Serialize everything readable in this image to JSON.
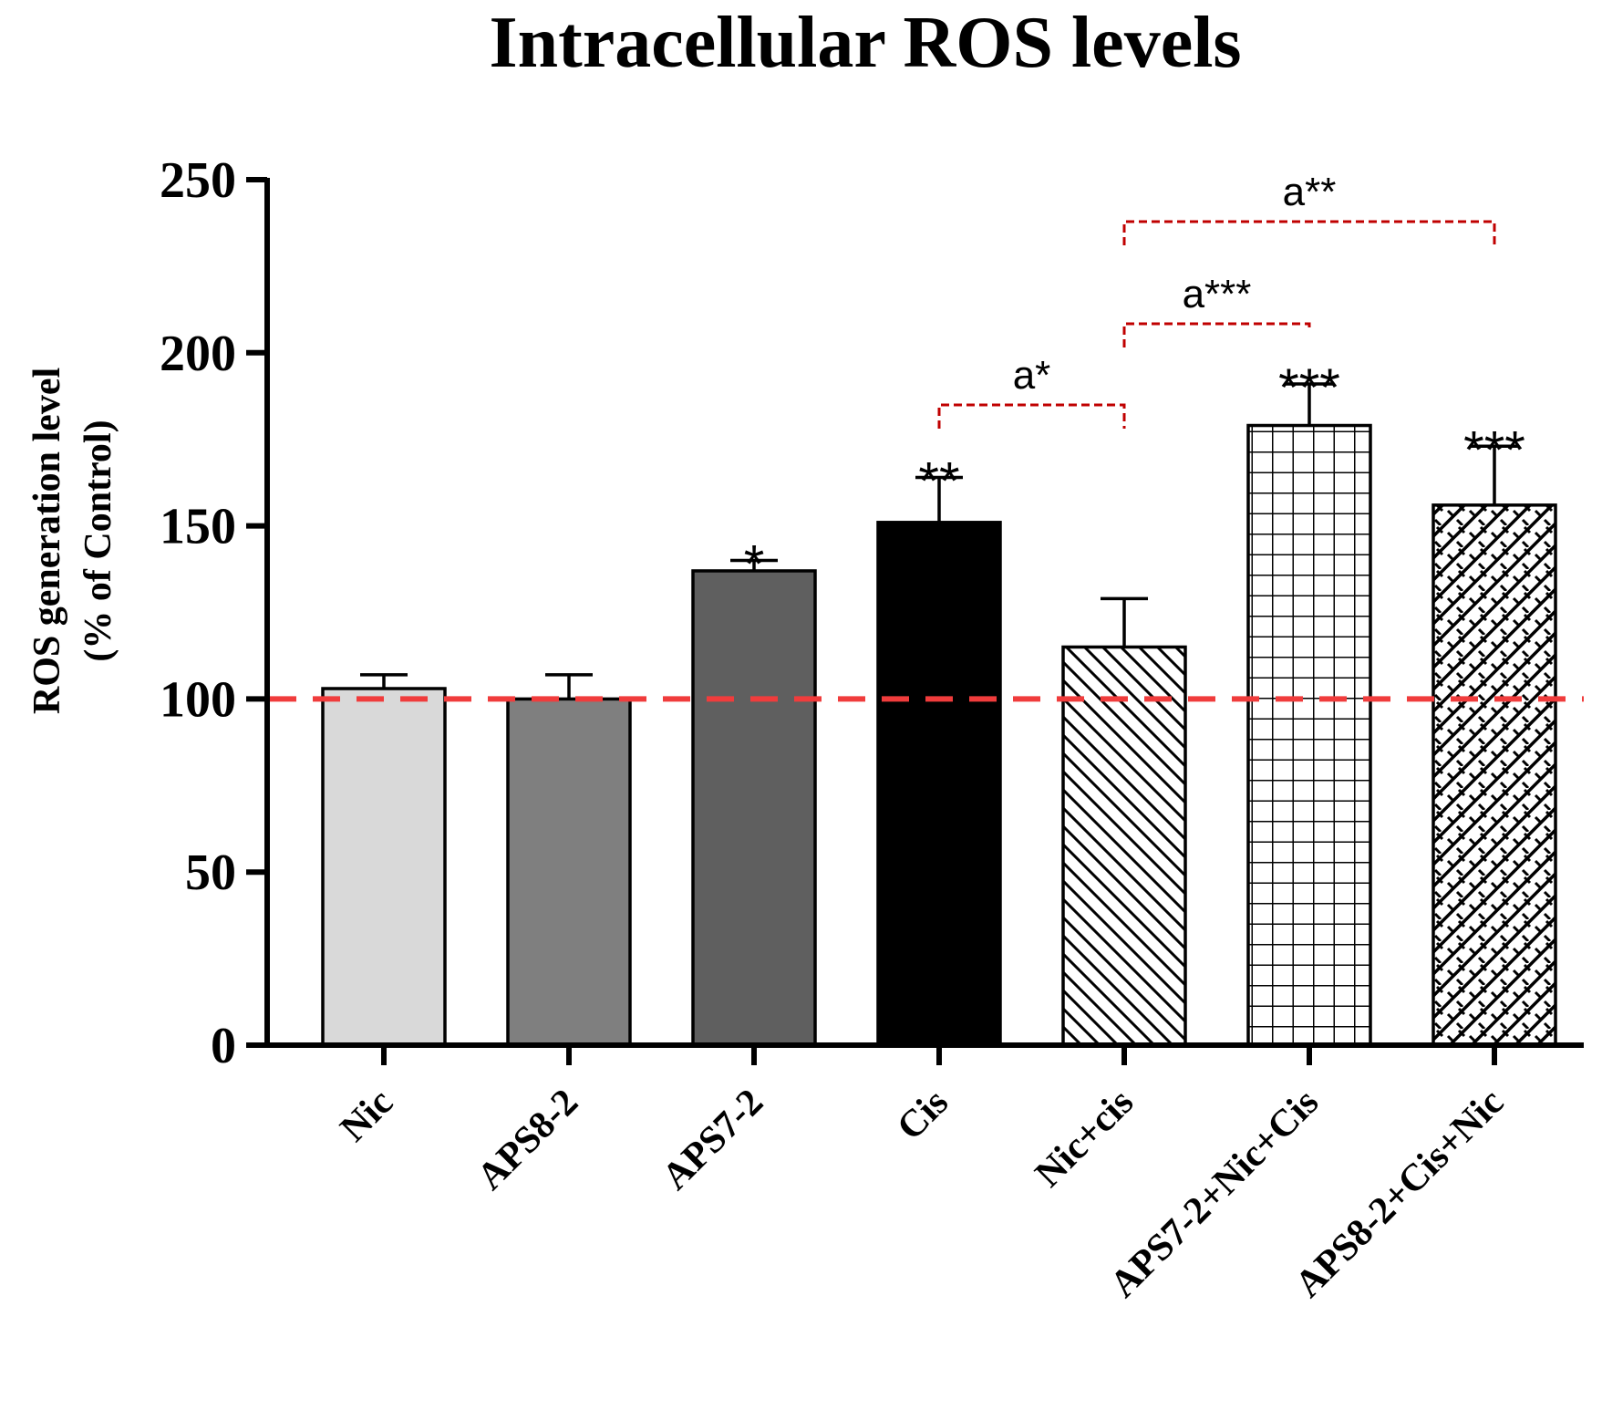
{
  "chart_data": {
    "type": "bar",
    "title": "Intracellular ROS levels",
    "ylabel_line1": "ROS generation level",
    "ylabel_line2": "(% of Control)",
    "xlabel": "",
    "ylim": [
      0,
      250
    ],
    "yticks": [
      "0",
      "50",
      "100",
      "150",
      "200",
      "250"
    ],
    "ytick_values": [
      0,
      50,
      100,
      150,
      200,
      250
    ],
    "categories": [
      "Nic",
      "APS8-2",
      "APS7-2",
      "Cis",
      "Nic+cis",
      "APS7-2+Nic+Cis",
      "APS8-2+Cis+Nic"
    ],
    "values": [
      103,
      100,
      137,
      151,
      115,
      179,
      156
    ],
    "errors": [
      4,
      7,
      3,
      13,
      14,
      12,
      17
    ],
    "significance": [
      "",
      "",
      "*",
      "**",
      "",
      "***",
      "***"
    ],
    "fills": [
      "#d9d9d9",
      "#7f7f7f",
      "#5f5f5f",
      "#000000",
      "hatch-diagonal",
      "hatch-grid",
      "hatch-cross"
    ],
    "reference_line": {
      "value": 100,
      "color": "#f03c3c",
      "style": "dashed"
    },
    "comparisons": [
      {
        "from": 3,
        "to": 4,
        "label": "a*"
      },
      {
        "from": 4,
        "to": 5,
        "label": "a***"
      },
      {
        "from": 4,
        "to": 6,
        "label": "a**"
      }
    ],
    "comparison_color": "#c00000",
    "grid": false,
    "legend": "none"
  }
}
